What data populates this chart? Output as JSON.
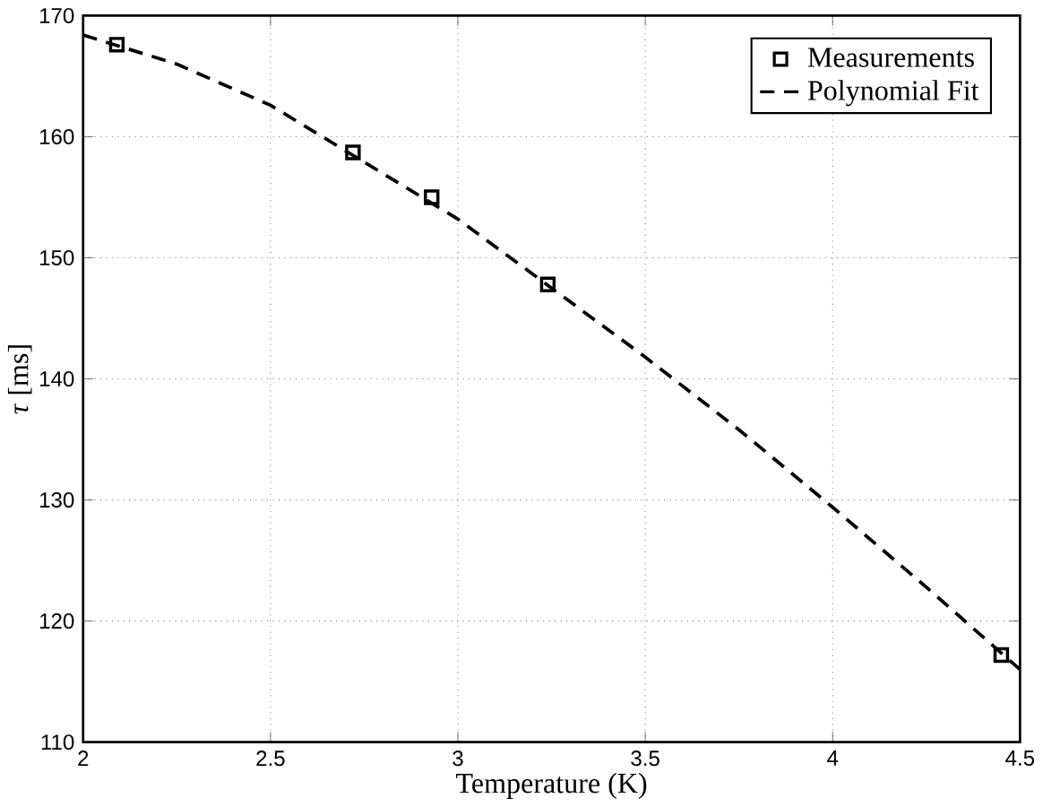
{
  "chart_data": {
    "type": "scatter",
    "xlabel": "Temperature (K)",
    "ylabel": "*τ* [ms]",
    "xlim": [
      2,
      4.5
    ],
    "ylim": [
      110,
      170
    ],
    "xticks": [
      2,
      2.5,
      3,
      3.5,
      4,
      4.5
    ],
    "yticks": [
      110,
      120,
      130,
      140,
      150,
      160,
      170
    ],
    "grid": true,
    "legend": "top right",
    "series": [
      {
        "name": "Measurements",
        "marker": "square",
        "color": "#000000",
        "x": [
          2.09,
          2.72,
          2.93,
          3.24,
          4.45
        ],
        "values": [
          167.6,
          158.7,
          155.0,
          147.8,
          117.2
        ]
      },
      {
        "name": "Polynomial Fit",
        "type": "line",
        "line_style": "dashed",
        "marker": "none",
        "color": "#000000",
        "x": [
          2,
          2.25,
          2.5,
          3,
          3.5,
          3.75,
          4,
          4.25,
          4.5
        ],
        "values": [
          168.4,
          166.0,
          162.6,
          153.2,
          141.8,
          135.8,
          129.4,
          122.8,
          116.0
        ]
      }
    ]
  }
}
